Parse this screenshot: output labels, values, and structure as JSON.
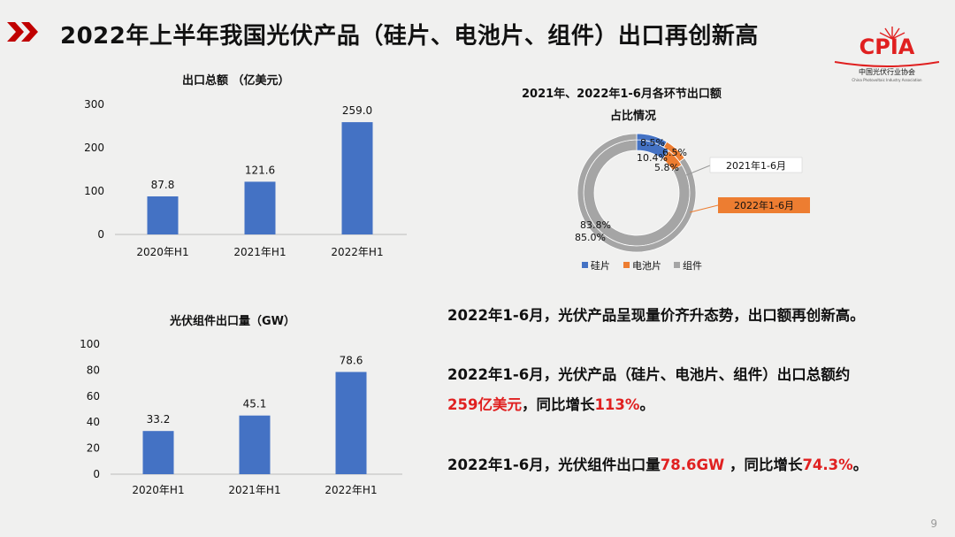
{
  "title": "2022年上半年我国光伏产品（硅片、电池片、组件）出口再创新高",
  "logo": {
    "text": "CPIA",
    "cn_name": "中国光伏行业协会",
    "en_name": "China Photovoltaic Industry Association"
  },
  "chart_data": [
    {
      "type": "bar",
      "title": "出口总额 （亿美元）",
      "categories": [
        "2020年H1",
        "2021年H1",
        "2022年H1"
      ],
      "values": [
        87.8,
        121.6,
        259.0
      ],
      "value_labels": [
        "87.8",
        "121.6",
        "259.0"
      ],
      "yticks": [
        "0",
        "100",
        "200",
        "300"
      ],
      "ylim": [
        0,
        300
      ],
      "color": "#4472c4"
    },
    {
      "type": "bar",
      "title": "光伏组件出口量（GW）",
      "categories": [
        "2020年H1",
        "2021年H1",
        "2022年H1"
      ],
      "values": [
        33.2,
        45.1,
        78.6
      ],
      "value_labels": [
        "33.2",
        "45.1",
        "78.6"
      ],
      "yticks": [
        "0",
        "20",
        "40",
        "60",
        "80",
        "100"
      ],
      "ylim": [
        0,
        100
      ],
      "color": "#4472c4"
    },
    {
      "type": "pie",
      "subtype": "donut",
      "title_line1": "2021年、2022年1-6月各环节出口额",
      "title_line2": "占比情况",
      "categories": [
        "硅片",
        "电池片",
        "组件"
      ],
      "colors": [
        "#4472c4",
        "#ed7d31",
        "#a5a5a5"
      ],
      "series": [
        {
          "name": "2021年1-6月",
          "values": [
            10.4,
            5.8,
            83.8
          ],
          "labels": [
            "10.4%",
            "5.8%",
            "83.8%"
          ]
        },
        {
          "name": "2022年1-6月",
          "values": [
            8.5,
            6.5,
            85.0
          ],
          "labels": [
            "8.5%",
            "6.5%",
            "85.0%"
          ]
        }
      ]
    }
  ],
  "text": {
    "line1": "2022年1-6月，光伏产品呈现量价齐升态势，出口额再创新高。",
    "line2": "2022年1-6月，光伏产品（硅片、电池片、组件）出口总额约",
    "line3_red1": "259亿美元",
    "line3_mid": "，同比增长",
    "line3_red2": "113%",
    "line3_end": "。",
    "line4_a": "2022年1-6月，光伏组件出口量",
    "line4_red1": "78.6GW",
    "line4_mid": " ，同比增长",
    "line4_red2": "74.3%",
    "line4_end": "。"
  },
  "page_number": "9"
}
